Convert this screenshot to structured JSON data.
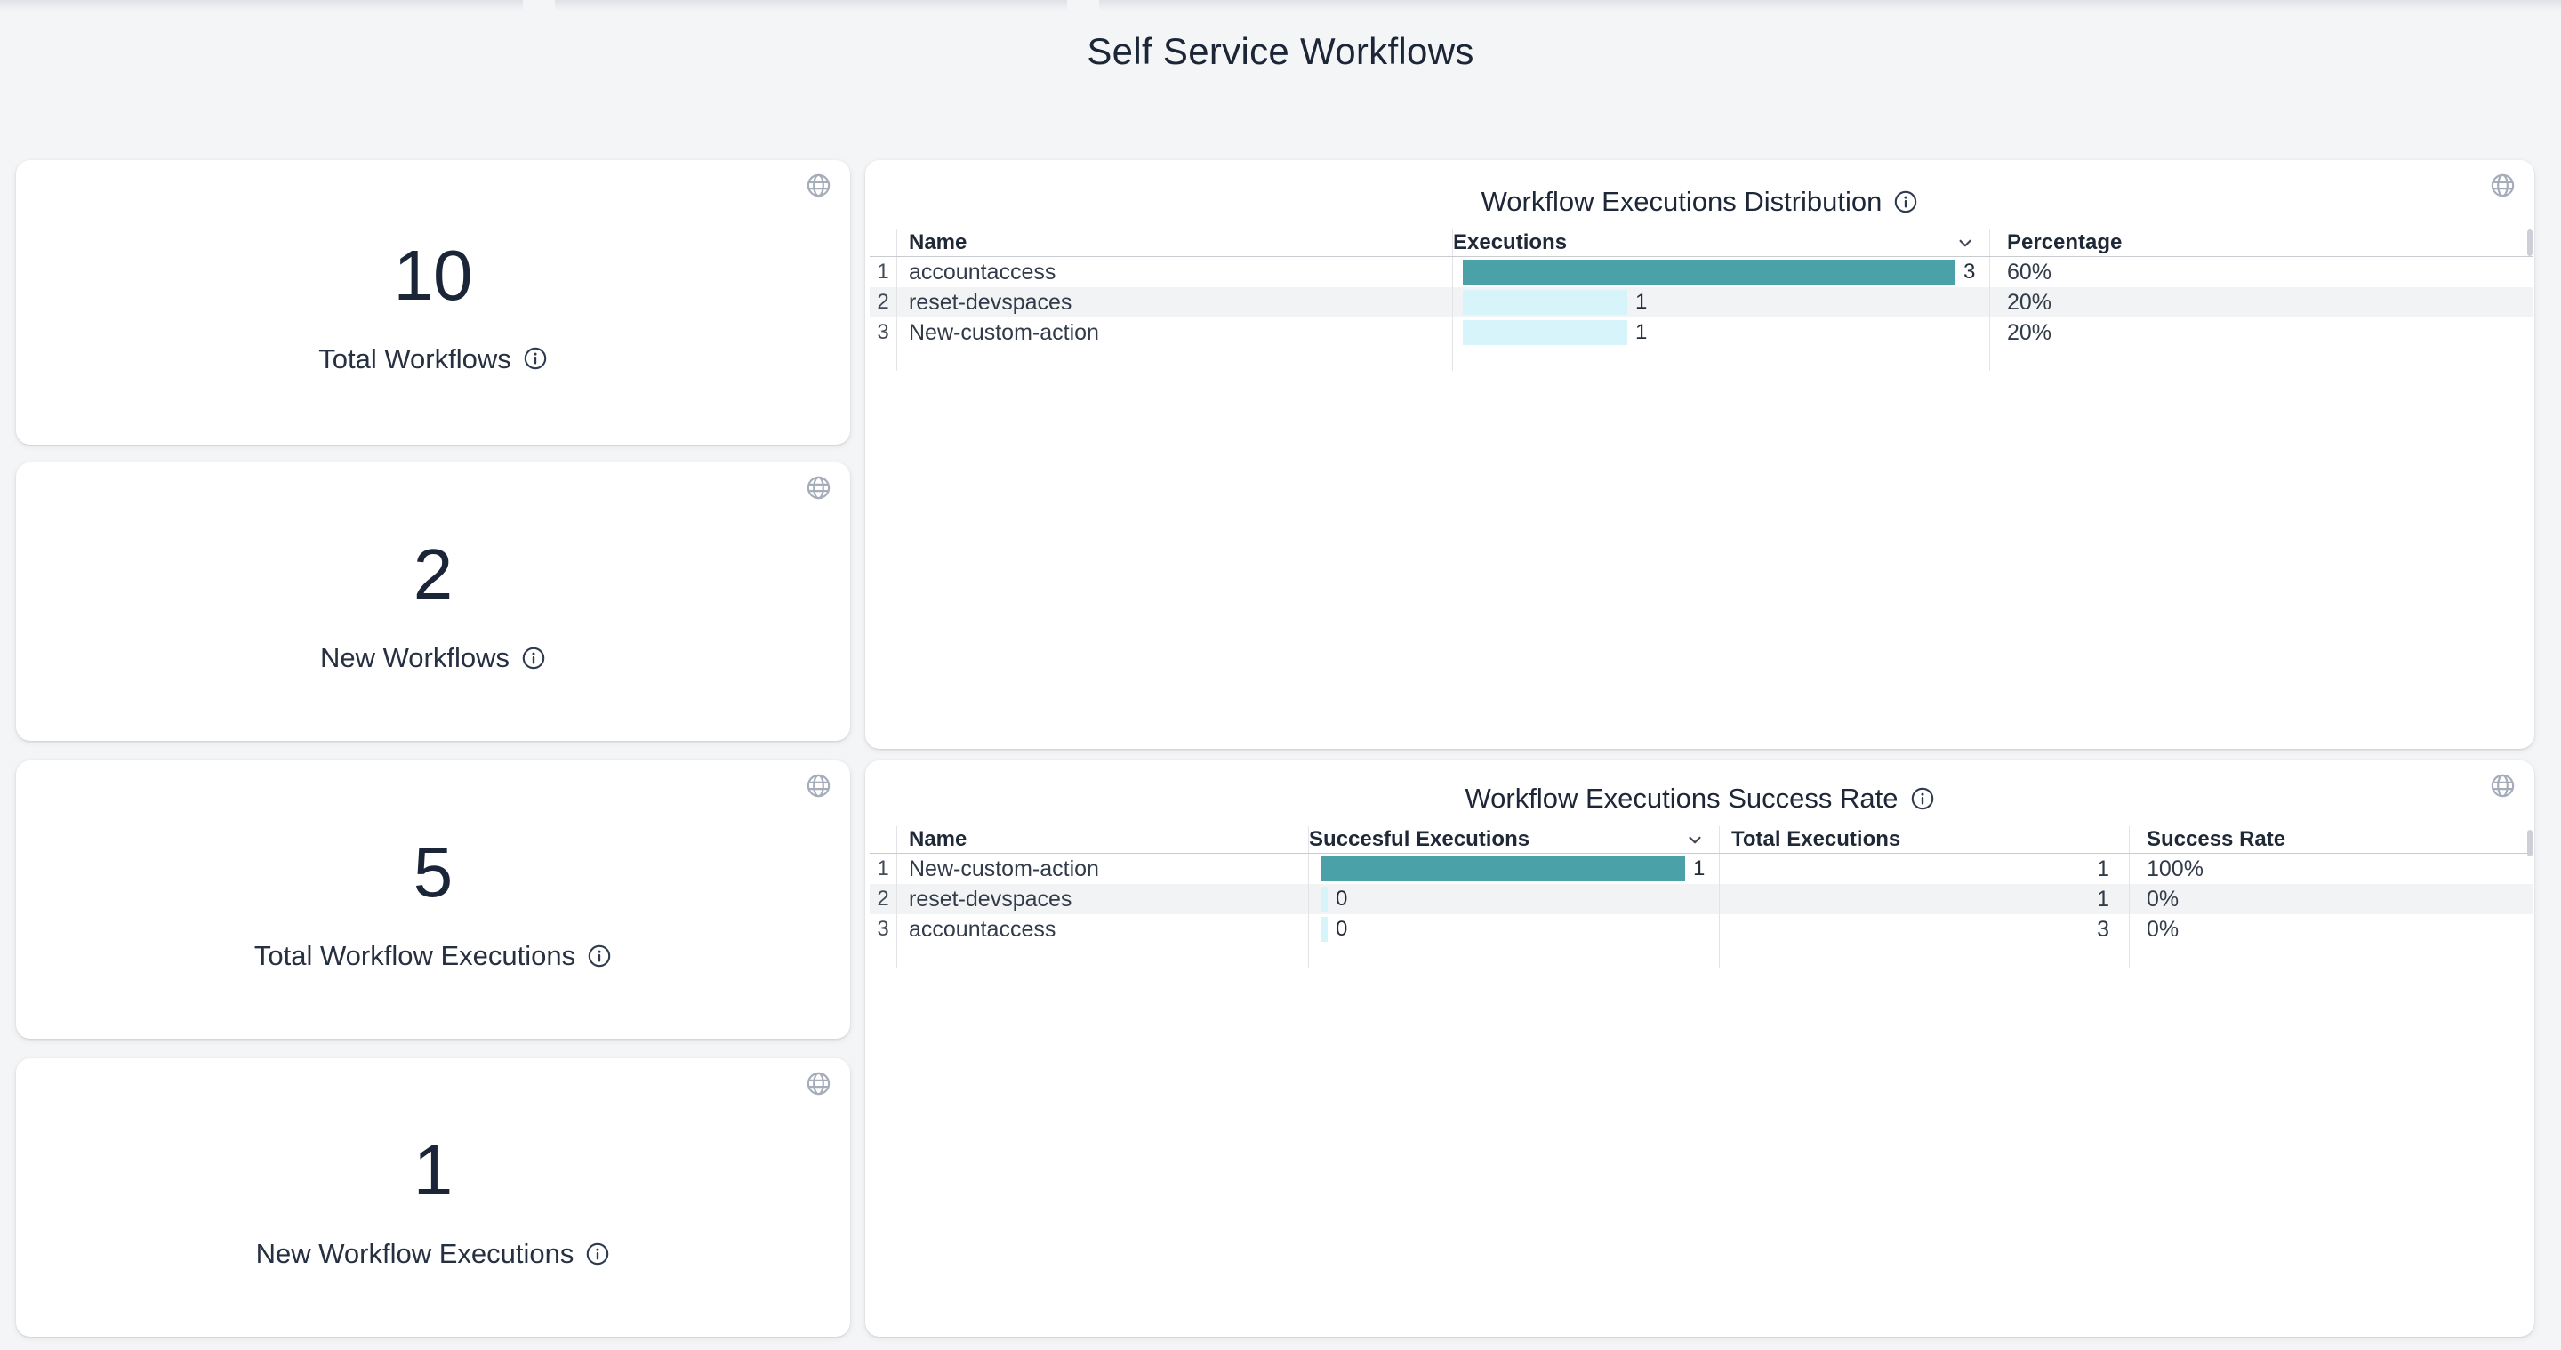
{
  "page": {
    "title": "Self Service Workflows"
  },
  "colors": {
    "background": "#f4f5f7",
    "card": "#ffffff",
    "accent_teal": "#4aa1a8",
    "accent_light_cyan": "#d6f4f9",
    "zebra_row": "#f1f3f4",
    "dark_text": "#1c2637",
    "icon_gray": "#a6adba"
  },
  "icons": {
    "globe": "globe-icon",
    "info": "info-icon",
    "sort_desc": "chevron-down-icon"
  },
  "cards": [
    {
      "value": 10,
      "label": "Total Workflows"
    },
    {
      "value": 2,
      "label": "New Workflows"
    },
    {
      "value": 5,
      "label": "Total Workflow Executions"
    },
    {
      "value": 1,
      "label": "New Workflow Executions"
    }
  ],
  "distribution_table": {
    "title": "Workflow Executions Distribution",
    "columns": {
      "index": "",
      "name": "Name",
      "executions": "Executions",
      "percentage": "Percentage"
    },
    "sorted_by": "Executions",
    "bar_max": 3,
    "rows": [
      {
        "num": "1",
        "name": "accountaccess",
        "executions": 3,
        "percentage": "60%"
      },
      {
        "num": "2",
        "name": "reset-devspaces",
        "executions": 1,
        "percentage": "20%"
      },
      {
        "num": "3",
        "name": "New-custom-action",
        "executions": 1,
        "percentage": "20%"
      }
    ]
  },
  "success_table": {
    "title": "Workflow Executions Success Rate",
    "columns": {
      "index": "",
      "name": "Name",
      "successful": "Succesful Executions",
      "total": "Total Executions",
      "rate": "Success Rate"
    },
    "sorted_by": "Succesful Executions",
    "bar_max": 1,
    "rows": [
      {
        "num": "1",
        "name": "New-custom-action",
        "successful": 1,
        "total": "1",
        "rate": "100%"
      },
      {
        "num": "2",
        "name": "reset-devspaces",
        "successful": 0,
        "total": "1",
        "rate": "0%"
      },
      {
        "num": "3",
        "name": "accountaccess",
        "successful": 0,
        "total": "3",
        "rate": "0%"
      }
    ]
  },
  "chart_data": [
    {
      "type": "bar",
      "title": "Workflow Executions Distribution",
      "categories": [
        "accountaccess",
        "reset-devspaces",
        "New-custom-action"
      ],
      "values": [
        3,
        1,
        1
      ],
      "percentages": [
        "60%",
        "20%",
        "20%"
      ],
      "xlabel": "Executions",
      "ylabel": "Name",
      "xlim": [
        0,
        3
      ],
      "orientation": "horizontal",
      "grid": false,
      "legend": "none"
    },
    {
      "type": "bar",
      "title": "Workflow Executions Success Rate",
      "categories": [
        "New-custom-action",
        "reset-devspaces",
        "accountaccess"
      ],
      "series": [
        {
          "name": "Succesful Executions",
          "values": [
            1,
            0,
            0
          ]
        },
        {
          "name": "Total Executions",
          "values": [
            1,
            1,
            3
          ]
        }
      ],
      "success_rates": [
        "100%",
        "0%",
        "0%"
      ],
      "xlim": [
        0,
        1
      ],
      "orientation": "horizontal",
      "grid": false,
      "legend": "none"
    }
  ]
}
